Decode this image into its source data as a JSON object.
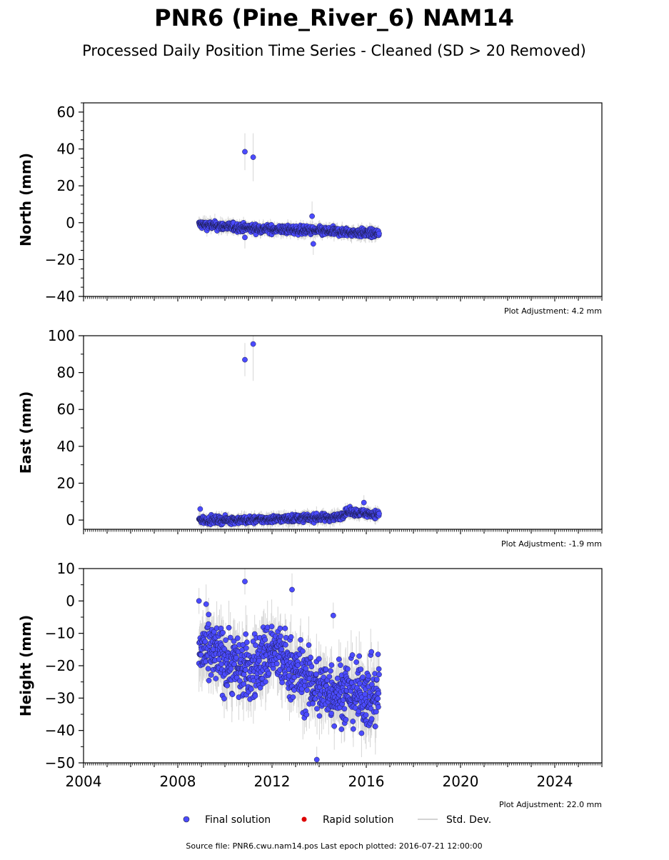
{
  "title": "PNR6 (Pine_River_6) NAM14",
  "subtitle": "Processed Daily Position Time Series - Cleaned (SD > 20 Removed)",
  "legend": {
    "final": "Final solution",
    "rapid": "Rapid solution",
    "std": "Std. Dev."
  },
  "footer": "Source file: PNR6.cwu.nam14.pos  Last epoch plotted: 2016-07-21 12:00:00",
  "colors": {
    "final": "#4b4bff",
    "rapid": "#dd0000",
    "std": "#bbbbbb"
  },
  "chart_data": [
    {
      "type": "scatter",
      "ylabel": "North (mm)",
      "adjustment": "Plot Adjustment: 4.2 mm",
      "xlim": [
        2004,
        2026
      ],
      "ylim": [
        -40,
        65
      ],
      "yticks": [
        -40,
        -20,
        0,
        20,
        40,
        60
      ],
      "yminor": 5,
      "data_start": 2008.9,
      "data_end": 2016.55,
      "trend": [
        [
          2008.9,
          -1
        ],
        [
          2011.0,
          -3
        ],
        [
          2013.0,
          -4
        ],
        [
          2015.0,
          -5
        ],
        [
          2016.55,
          -6
        ]
      ],
      "noise": 1.6,
      "sd_range": [
        1,
        4
      ],
      "outliers": [
        [
          2010.85,
          38.5,
          10
        ],
        [
          2011.2,
          35.5,
          13
        ],
        [
          2013.75,
          -11.5,
          6
        ],
        [
          2013.7,
          3.5,
          8
        ],
        [
          2010.85,
          -8,
          6
        ]
      ]
    },
    {
      "type": "scatter",
      "ylabel": "East (mm)",
      "adjustment": "Plot Adjustment: -1.9 mm",
      "xlim": [
        2004,
        2026
      ],
      "ylim": [
        -5,
        100
      ],
      "yticks": [
        0,
        20,
        40,
        60,
        80,
        100
      ],
      "yminor": 10,
      "data_start": 2008.9,
      "data_end": 2016.55,
      "trend": [
        [
          2008.9,
          0
        ],
        [
          2011.0,
          0
        ],
        [
          2013.0,
          1
        ],
        [
          2014.8,
          1.5
        ],
        [
          2015.2,
          4.5
        ],
        [
          2016.55,
          3
        ]
      ],
      "noise": 1.4,
      "sd_range": [
        1,
        4
      ],
      "outliers": [
        [
          2010.85,
          87,
          9
        ],
        [
          2011.2,
          95.5,
          20
        ],
        [
          2015.9,
          9.5,
          4
        ],
        [
          2008.95,
          6,
          3
        ]
      ]
    },
    {
      "type": "scatter",
      "ylabel": "Height (mm)",
      "adjustment": "Plot Adjustment: 22.0 mm",
      "xlim": [
        2004,
        2026
      ],
      "xticks": [
        2004,
        2008,
        2012,
        2016,
        2020,
        2024
      ],
      "ylim": [
        -50,
        10
      ],
      "yticks": [
        -50,
        -40,
        -30,
        -20,
        -10,
        0,
        10
      ],
      "yminor": 5,
      "data_start": 2008.9,
      "data_end": 2016.55,
      "trend": [
        [
          2008.9,
          -15
        ],
        [
          2010.0,
          -18
        ],
        [
          2011.0,
          -22
        ],
        [
          2012.0,
          -15
        ],
        [
          2013.0,
          -22
        ],
        [
          2014.0,
          -27
        ],
        [
          2015.0,
          -28
        ],
        [
          2016.55,
          -30
        ]
      ],
      "noise": 7,
      "sd_range": [
        3,
        9
      ],
      "outliers": [
        [
          2010.85,
          6,
          4
        ],
        [
          2012.85,
          3.5,
          5
        ],
        [
          2013.9,
          -49,
          4
        ],
        [
          2008.9,
          0,
          4
        ],
        [
          2014.6,
          -4.5,
          4
        ],
        [
          2016.5,
          -16.5,
          4
        ]
      ]
    }
  ]
}
